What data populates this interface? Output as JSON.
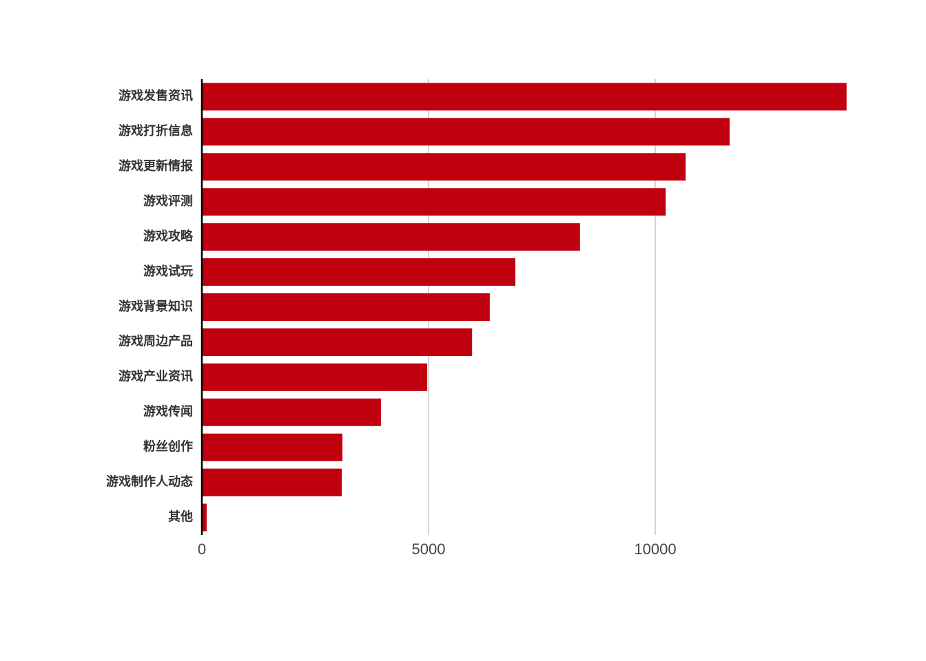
{
  "chart_data": {
    "type": "barh",
    "categories": [
      "游戏发售资讯",
      "游戏打折信息",
      "游戏更新情报",
      "游戏评测",
      "游戏攻略",
      "游戏试玩",
      "游戏背景知识",
      "游戏周边产品",
      "游戏产业资讯",
      "游戏传闻",
      "粉丝创作",
      "游戏制作人动态",
      "其他"
    ],
    "values": [
      14220,
      11640,
      10670,
      10230,
      8340,
      6915,
      6350,
      5960,
      4970,
      3950,
      3100,
      3085,
      105
    ],
    "color": "#c0000f",
    "xlim": [
      0,
      14300
    ],
    "xticks": [
      0,
      5000,
      10000
    ],
    "grid": true
  }
}
